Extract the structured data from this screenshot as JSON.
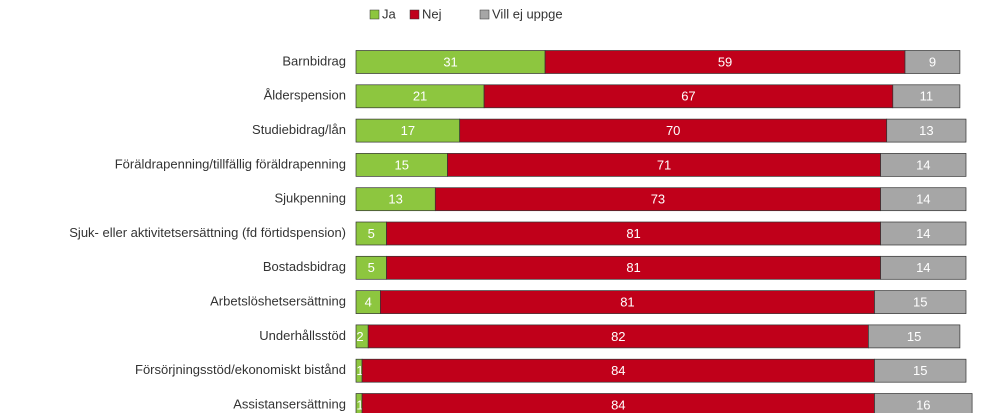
{
  "chart_data": {
    "type": "stacked-bar-horizontal",
    "categories": [
      "Barnbidrag",
      "Ålderspension",
      "Studiebidrag/lån",
      "Föräldrapenning/tillfällig föräldrapenning",
      "Sjukpenning",
      "Sjuk- eller aktivitetsersättning (fd förtidspension)",
      "Bostadsbidrag",
      "Arbetslöshetsersättning",
      "Underhållsstöd",
      "Försörjningsstöd/ekonomiskt bistånd",
      "Assistansersättning"
    ],
    "series": [
      {
        "name": "Ja",
        "color": "#8dc63f",
        "values": [
          31,
          21,
          17,
          15,
          13,
          5,
          5,
          4,
          2,
          1,
          1
        ]
      },
      {
        "name": "Nej",
        "color": "#c0001a",
        "values": [
          59,
          67,
          70,
          71,
          73,
          81,
          81,
          81,
          82,
          84,
          84
        ]
      },
      {
        "name": "Vill ej uppge",
        "color": "#a6a6a6",
        "values": [
          9,
          11,
          13,
          14,
          14,
          14,
          14,
          15,
          15,
          15,
          16
        ]
      }
    ],
    "xlim": [
      0,
      100
    ],
    "legend": "top"
  }
}
